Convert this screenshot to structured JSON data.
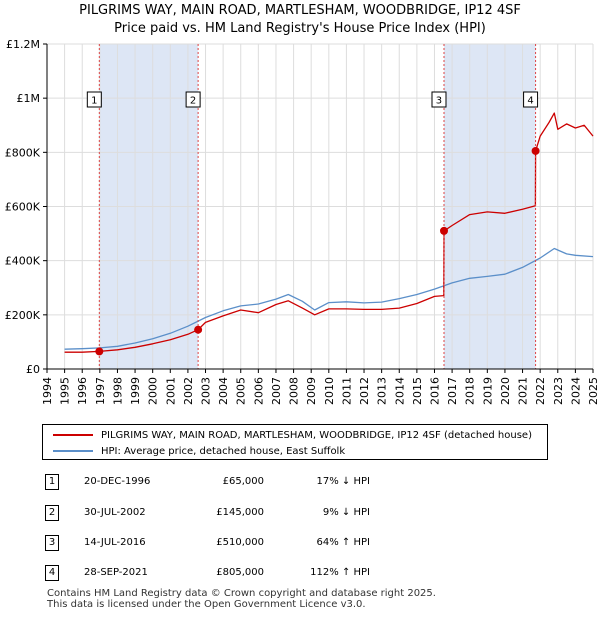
{
  "title": "PILGRIMS WAY, MAIN ROAD, MARTLESHAM, WOODBRIDGE, IP12 4SF",
  "subtitle": "Price paid vs. HM Land Registry's House Price Index (HPI)",
  "legend": {
    "series1": "PILGRIMS WAY, MAIN ROAD, MARTLESHAM, WOODBRIDGE, IP12 4SF (detached house)",
    "series2": "HPI: Average price, detached house, East Suffolk"
  },
  "colors": {
    "price_line": "#cc0000",
    "hpi_line": "#5b8fc9",
    "shade": "#dde6f5",
    "marker_line": "#dd4444"
  },
  "sales": [
    {
      "num": "1",
      "date": "20-DEC-1996",
      "price": "£65,000",
      "hpi": "17% ↓ HPI"
    },
    {
      "num": "2",
      "date": "30-JUL-2002",
      "price": "£145,000",
      "hpi": "9% ↓ HPI"
    },
    {
      "num": "3",
      "date": "14-JUL-2016",
      "price": "£510,000",
      "hpi": "64% ↑ HPI"
    },
    {
      "num": "4",
      "date": "28-SEP-2021",
      "price": "£805,000",
      "hpi": "112% ↑ HPI"
    }
  ],
  "footer": {
    "line1": "Contains HM Land Registry data © Crown copyright and database right 2025.",
    "line2": "This data is licensed under the Open Government Licence v3.0."
  },
  "chart_data": {
    "type": "line",
    "title": "PILGRIMS WAY, MAIN ROAD, MARTLESHAM, WOODBRIDGE, IP12 4SF",
    "subtitle": "Price paid vs. HM Land Registry's House Price Index (HPI)",
    "xlim": [
      1994,
      2025
    ],
    "ylim": [
      0,
      1200000
    ],
    "ytick_values": [
      0,
      200000,
      400000,
      600000,
      800000,
      1000000,
      1200000
    ],
    "ytick_labels": [
      "£0",
      "£200K",
      "£400K",
      "£600K",
      "£800K",
      "£1M",
      "£1.2M"
    ],
    "xtick_labels": [
      "1994",
      "1995",
      "1996",
      "1997",
      "1998",
      "1999",
      "2000",
      "2001",
      "2002",
      "2003",
      "2004",
      "2005",
      "2006",
      "2007",
      "2008",
      "2009",
      "2010",
      "2011",
      "2012",
      "2013",
      "2014",
      "2015",
      "2016",
      "2017",
      "2018",
      "2019",
      "2020",
      "2021",
      "2022",
      "2023",
      "2024",
      "2025"
    ],
    "shaded_ranges": [
      [
        1996.97,
        2002.58
      ],
      [
        2016.54,
        2021.74
      ]
    ],
    "sale_markers": [
      {
        "label": "1",
        "x": 1996.97,
        "y": 65000
      },
      {
        "label": "2",
        "x": 2002.58,
        "y": 145000
      },
      {
        "label": "3",
        "x": 2016.54,
        "y": 510000
      },
      {
        "label": "4",
        "x": 2021.74,
        "y": 805000
      }
    ],
    "series": [
      {
        "name": "PILGRIMS WAY, MAIN ROAD, MARTLESHAM, WOODBRIDGE, IP12 4SF (detached house)",
        "x": [
          1995,
          1996,
          1996.97,
          1998,
          1999,
          2000,
          2001,
          2002,
          2002.58,
          2003,
          2004,
          2005,
          2006,
          2007,
          2007.7,
          2008.5,
          2009.2,
          2010,
          2011,
          2012,
          2013,
          2014,
          2015,
          2016,
          2016.53,
          2016.54,
          2017,
          2018,
          2019,
          2020,
          2021,
          2021.73,
          2021.74,
          2022,
          2022.5,
          2022.8,
          2023,
          2023.5,
          2024,
          2024.5,
          2025
        ],
        "values": [
          62000,
          62000,
          65000,
          71000,
          80000,
          93000,
          108000,
          128000,
          145000,
          172000,
          196000,
          218000,
          208000,
          238000,
          252000,
          225000,
          200000,
          222000,
          222000,
          220000,
          220000,
          225000,
          242000,
          268000,
          271000,
          510000,
          530000,
          570000,
          580000,
          575000,
          590000,
          603000,
          805000,
          860000,
          910000,
          945000,
          885000,
          905000,
          890000,
          900000,
          860000
        ]
      },
      {
        "name": "HPI: Average price, detached house, East Suffolk",
        "x": [
          1995,
          1996,
          1997,
          1998,
          1999,
          2000,
          2001,
          2002,
          2003,
          2004,
          2005,
          2006,
          2007,
          2007.7,
          2008.5,
          2009.2,
          2010,
          2011,
          2012,
          2013,
          2014,
          2015,
          2016,
          2017,
          2018,
          2019,
          2020,
          2021,
          2022,
          2022.8,
          2023.5,
          2024,
          2025
        ],
        "values": [
          73000,
          75000,
          78000,
          84000,
          96000,
          112000,
          132000,
          158000,
          190000,
          215000,
          233000,
          240000,
          258000,
          275000,
          250000,
          218000,
          245000,
          248000,
          244000,
          247000,
          260000,
          275000,
          295000,
          318000,
          335000,
          342000,
          350000,
          375000,
          410000,
          445000,
          425000,
          420000,
          415000
        ]
      }
    ]
  }
}
